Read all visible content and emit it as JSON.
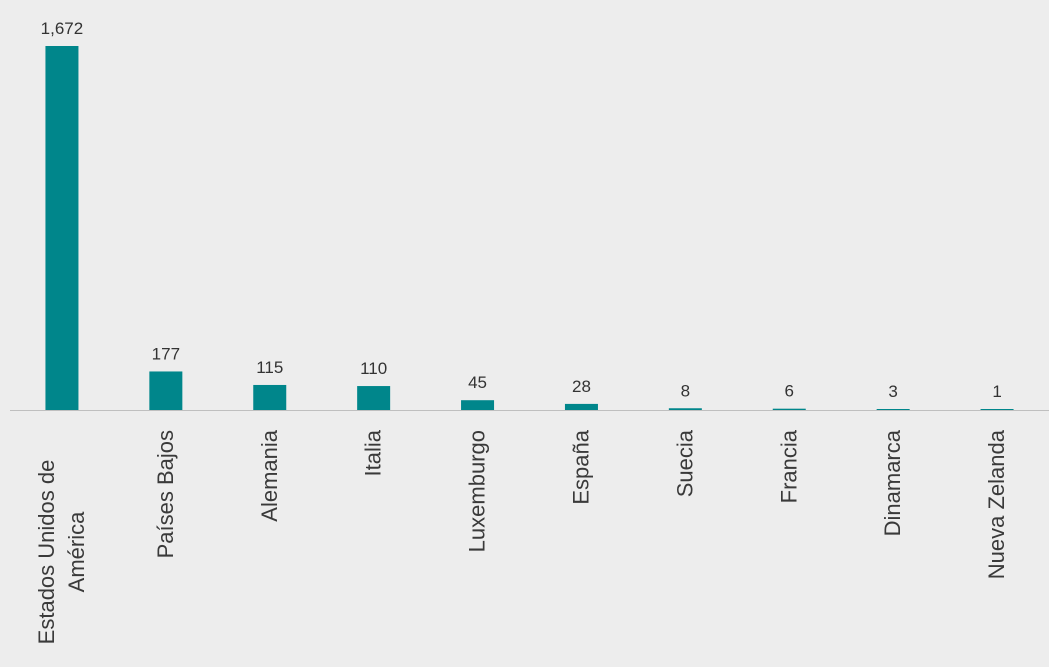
{
  "chart_data": {
    "type": "bar",
    "categories": [
      [
        "Estados Unidos de",
        "América"
      ],
      [
        "Países Bajos"
      ],
      [
        "Alemania"
      ],
      [
        "Italia"
      ],
      [
        "Luxemburgo"
      ],
      [
        "España"
      ],
      [
        "Suecia"
      ],
      [
        "Francia"
      ],
      [
        "Dinamarca"
      ],
      [
        "Nueva Zelanda"
      ]
    ],
    "values": [
      1672,
      177,
      115,
      110,
      45,
      28,
      8,
      6,
      3,
      1
    ],
    "value_labels": [
      "1,672",
      "177",
      "115",
      "110",
      "45",
      "28",
      "8",
      "6",
      "3",
      "1"
    ],
    "title": "",
    "xlabel": "",
    "ylabel": "",
    "ylim": [
      0,
      1672
    ],
    "grid": false,
    "legend": "none",
    "bar_color": "#00868b",
    "axis_color": "#bfbfbf",
    "background": "#ededed"
  }
}
